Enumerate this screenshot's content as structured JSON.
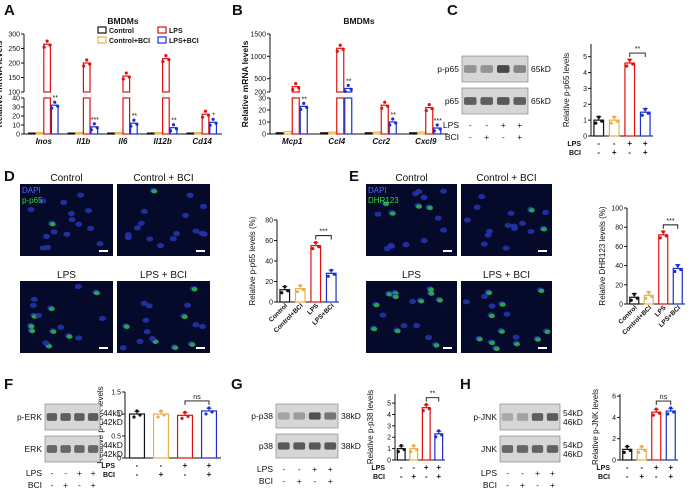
{
  "panels": {
    "A": {
      "label": "A",
      "title": "BMDMs",
      "ylabel": "Relative mRNA levels"
    },
    "B": {
      "label": "B",
      "title": "BMDMs",
      "ylabel": "Relative mRNA levels"
    },
    "C": {
      "label": "C"
    },
    "D": {
      "label": "D"
    },
    "E": {
      "label": "E"
    },
    "F": {
      "label": "F"
    },
    "G": {
      "label": "G"
    },
    "H": {
      "label": "H"
    }
  },
  "legend": {
    "items": [
      {
        "name": "Control",
        "color": "#111111"
      },
      {
        "name": "LPS",
        "color": "#e01010"
      },
      {
        "name": "Control+BCI",
        "color": "#e8b04a"
      },
      {
        "name": "LPS+BCI",
        "color": "#1a2fd0"
      }
    ]
  },
  "colors": {
    "control": "#111111",
    "control_bci": "#e8b04a",
    "lps": "#e01010",
    "lps_bci": "#1a2fd0"
  },
  "group_labels": [
    "Control",
    "Control+BCI",
    "LPS",
    "LPS+BCI"
  ],
  "treatment_table": {
    "rows": [
      "LPS",
      "BCI"
    ],
    "lps": [
      "-",
      "-",
      "+",
      "+"
    ],
    "bci": [
      "-",
      "+",
      "-",
      "+"
    ]
  },
  "images": {
    "D": {
      "tiles": [
        "Control",
        "Control + BCI",
        "LPS",
        "LPS + BCI"
      ],
      "stains": [
        "DAPI",
        "p-p65"
      ]
    },
    "E": {
      "tiles": [
        "Control",
        "Control + BCI",
        "LPS",
        "LPS + BCI"
      ],
      "stains": [
        "DAPI",
        "DHR123"
      ]
    }
  },
  "blots": {
    "C": {
      "rows": [
        {
          "label": "p-p65",
          "size": "65kD"
        },
        {
          "label": "p65",
          "size": "65kD"
        }
      ]
    },
    "F": {
      "rows": [
        {
          "label": "p-ERK",
          "sizes": [
            "44kD",
            "42kD"
          ]
        },
        {
          "label": "ERK",
          "sizes": [
            "44kD",
            "42kD"
          ]
        }
      ]
    },
    "G": {
      "rows": [
        {
          "label": "p-p38",
          "size": "38kD"
        },
        {
          "label": "p38",
          "size": "38kD"
        }
      ]
    },
    "H": {
      "rows": [
        {
          "label": "p-JNK",
          "sizes": [
            "54kD",
            "46kD"
          ]
        },
        {
          "label": "JNK",
          "sizes": [
            "54kD",
            "46kD"
          ]
        }
      ]
    }
  },
  "chart_data": [
    {
      "id": "A",
      "type": "bar",
      "title": "BMDMs",
      "ylabel": "Relative mRNA levels",
      "categories": [
        "Inos",
        "Il1b",
        "Il6",
        "Il12b",
        "Cd14"
      ],
      "y_axis": {
        "broken": true,
        "lower_ticks": [
          0,
          10,
          20,
          30,
          40
        ],
        "upper_ticks": [
          100,
          150,
          200,
          250,
          300
        ]
      },
      "series": [
        {
          "name": "Control",
          "values": [
            1,
            1,
            1,
            1,
            1
          ]
        },
        {
          "name": "Control+BCI",
          "values": [
            1.5,
            1.5,
            1.5,
            1.5,
            1.5
          ]
        },
        {
          "name": "LPS",
          "values": [
            265,
            200,
            155,
            215,
            22
          ]
        },
        {
          "name": "LPS+BCI",
          "values": [
            32,
            8,
            12,
            7,
            13
          ]
        }
      ],
      "significance": [
        "**",
        "***",
        "**",
        "**",
        "*"
      ]
    },
    {
      "id": "B",
      "type": "bar",
      "title": "BMDMs",
      "ylabel": "Relative mRNA levels",
      "categories": [
        "Mcp1",
        "Ccl4",
        "Ccr2",
        "Cxcl9"
      ],
      "y_axis": {
        "broken": true,
        "lower_ticks": [
          0,
          10,
          20,
          30
        ],
        "upper_ticks": [
          200,
          500,
          1000,
          1500
        ]
      },
      "series": [
        {
          "name": "Control",
          "values": [
            1,
            1,
            1,
            1
          ]
        },
        {
          "name": "Control+BCI",
          "values": [
            2,
            1.5,
            1.5,
            1.5
          ]
        },
        {
          "name": "LPS",
          "values": [
            320,
            1180,
            24,
            22
          ]
        },
        {
          "name": "LPS+BCI",
          "values": [
            23,
            280,
            10,
            5
          ]
        }
      ],
      "significance": [
        "**",
        "**",
        "**",
        "***"
      ]
    },
    {
      "id": "C",
      "type": "bar",
      "ylabel": "Relative p-p65 levels",
      "categories": [
        "Control",
        "Control+BCI",
        "LPS",
        "LPS+BCI"
      ],
      "values": [
        1,
        1,
        4.6,
        1.5
      ],
      "yticks": [
        0,
        1,
        2,
        3,
        4,
        5
      ],
      "ylim": [
        0,
        5.8
      ],
      "significance": {
        "pair": [
          2,
          3
        ],
        "label": "**"
      }
    },
    {
      "id": "D",
      "type": "bar",
      "ylabel": "Relative p-p65 levels (%)",
      "categories": [
        "Control",
        "Control+BCI",
        "LPS",
        "LPS+BCI"
      ],
      "values": [
        12,
        13,
        55,
        28
      ],
      "yticks": [
        0,
        20,
        40,
        60,
        80
      ],
      "ylim": [
        0,
        80
      ],
      "significance": {
        "pair": [
          2,
          3
        ],
        "label": "***"
      }
    },
    {
      "id": "E",
      "type": "bar",
      "ylabel": "Relative DHR123 levels (%)",
      "categories": [
        "Control",
        "Control+BCI",
        "LPS",
        "LPS+BCI"
      ],
      "values": [
        7,
        9,
        72,
        37
      ],
      "yticks": [
        0,
        20,
        40,
        60,
        80,
        100
      ],
      "ylim": [
        0,
        100
      ],
      "significance": {
        "pair": [
          2,
          3
        ],
        "label": "***"
      }
    },
    {
      "id": "F",
      "type": "bar",
      "ylabel": "Relative p-ERK levels",
      "categories": [
        "Control",
        "Control+BCI",
        "LPS",
        "LPS+BCI"
      ],
      "values": [
        1.0,
        1.0,
        0.97,
        1.07
      ],
      "yticks": [
        0,
        0.5,
        1.0,
        1.5
      ],
      "ylim": [
        0,
        1.5
      ],
      "significance": {
        "pair": [
          2,
          3
        ],
        "label": "ns"
      }
    },
    {
      "id": "G",
      "type": "bar",
      "ylabel": "Relative p-p38 levels",
      "categories": [
        "Control",
        "Control+BCI",
        "LPS",
        "LPS+BCI"
      ],
      "values": [
        1,
        1,
        4.6,
        2.3
      ],
      "yticks": [
        0,
        1,
        2,
        3,
        4,
        5
      ],
      "ylim": [
        0,
        5.8
      ],
      "significance": {
        "pair": [
          2,
          3
        ],
        "label": "**"
      }
    },
    {
      "id": "H",
      "type": "bar",
      "ylabel": "Relative p-JNK levels",
      "categories": [
        "Control",
        "Control+BCI",
        "LPS",
        "LPS+BCI"
      ],
      "values": [
        1,
        1,
        4.5,
        4.6
      ],
      "yticks": [
        0,
        2,
        4,
        6
      ],
      "ylim": [
        0,
        6.2
      ],
      "significance": {
        "pair": [
          2,
          3
        ],
        "label": "ns"
      }
    }
  ]
}
